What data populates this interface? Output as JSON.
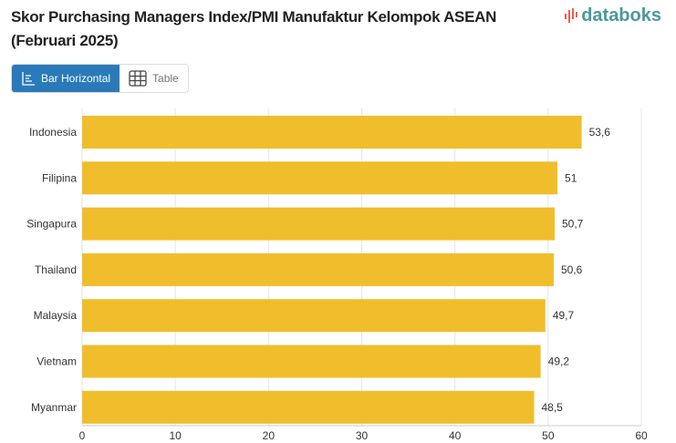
{
  "header": {
    "title_line1": "Skor Purchasing Managers Index/PMI Manufaktur Kelompok ASEAN",
    "title_line2": "(Februari 2025)",
    "logo": "databoks"
  },
  "tabs": [
    {
      "label": "Bar Horizontal",
      "icon": "bar-chart-icon",
      "active": true
    },
    {
      "label": "Table",
      "icon": "table-icon",
      "active": false
    }
  ],
  "colors": {
    "bar": "#f0be2c",
    "accent": "#2a7ab9",
    "logo": "#4a9a9a"
  },
  "chart_data": {
    "type": "bar",
    "orientation": "horizontal",
    "categories": [
      "Indonesia",
      "Filipina",
      "Singapura",
      "Thailand",
      "Malaysia",
      "Vietnam",
      "Myanmar"
    ],
    "values": [
      53.6,
      51,
      50.7,
      50.6,
      49.7,
      49.2,
      48.5
    ],
    "value_labels": [
      "53,6",
      "51",
      "50,7",
      "50,6",
      "49,7",
      "49,2",
      "48,5"
    ],
    "xlim": [
      0,
      60
    ],
    "xticks": [
      0,
      10,
      20,
      30,
      40,
      50,
      60
    ],
    "grid": true,
    "title": "Skor Purchasing Managers Index/PMI Manufaktur Kelompok ASEAN (Februari 2025)"
  }
}
